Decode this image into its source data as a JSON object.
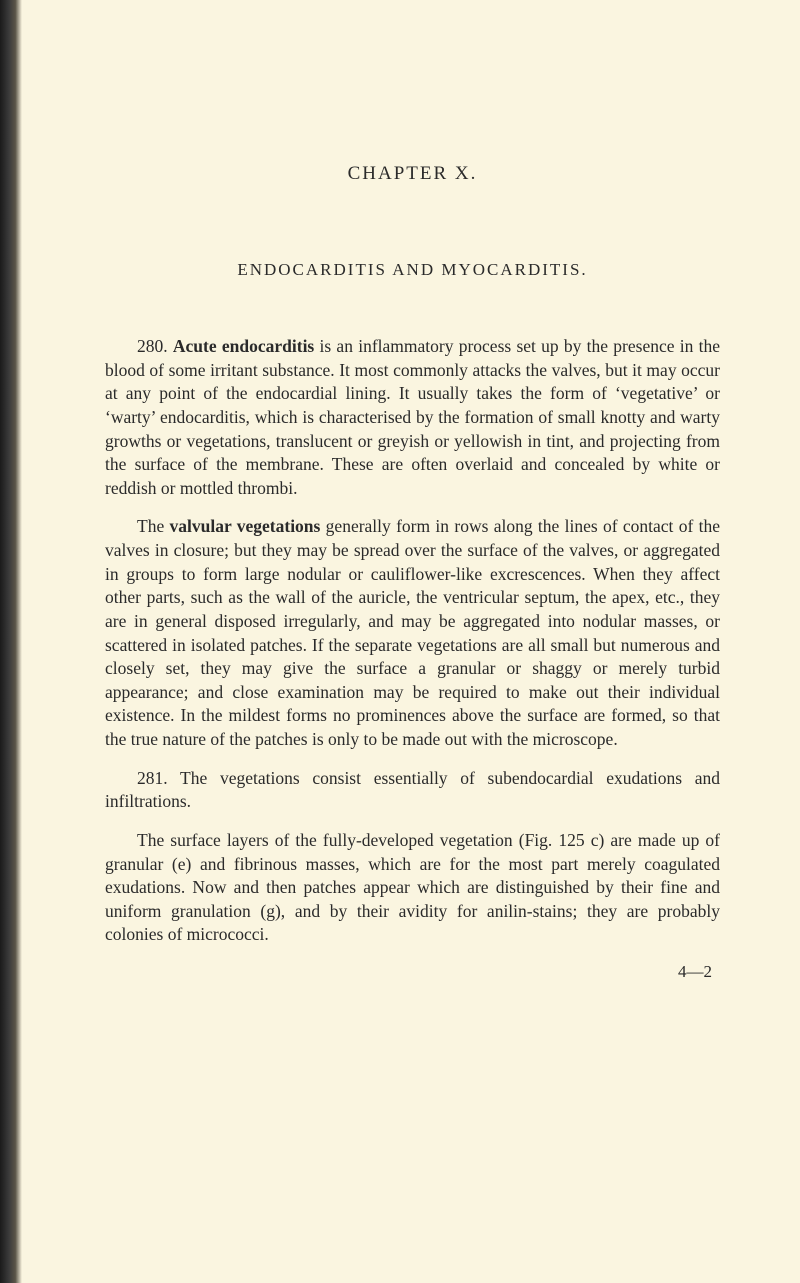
{
  "document": {
    "chapterHeading": "CHAPTER X.",
    "sectionHeading": "ENDOCARDITIS AND MYOCARDITIS.",
    "para1_num": "280. ",
    "para1_bold1": "Acute endocarditis",
    "para1_text1": " is an inflammatory process set up by the presence in the blood of some irritant substance. It most commonly attacks the valves, but it may occur at any point of the endocardial lining. It usually takes the form of ‘vegetative’ or ‘warty’ endocarditis, which is characterised by the formation of small knotty and warty growths or vegetations, translucent or greyish or yellowish in tint, and projecting from the surface of the membrane. These are often overlaid and concealed by white or reddish or mottled thrombi.",
    "para2_text1": "The ",
    "para2_bold1": "valvular vegetations",
    "para2_text2": " generally form in rows along the lines of contact of the valves in closure; but they may be spread over the surface of the valves, or aggregated in groups to form large nodular or cauliflower-like excrescences. When they affect other parts, such as the wall of the auricle, the ventricular septum, the apex, etc., they are in general disposed irregularly, and may be aggregated into nodular masses, or scattered in isolated patches. If the separate vegetations are all small but numerous and closely set, they may give the surface a granular or shaggy or merely turbid appearance; and close examination may be required to make out their individual existence. In the mildest forms no prominences above the surface are formed, so that the true nature of the patches is only to be made out with the microscope.",
    "para3_num": "281. ",
    "para3_text1": "The vegetations consist essentially of subendocardial exudations and infiltrations.",
    "para4_text1": "The surface layers of the fully-developed vegetation (Fig. 125 c) are made up of granular (e) and fibrinous masses, which are for the most part merely coagulated exudations. Now and then patches appear which are distinguished by their fine and uniform granulation (g), and by their avidity for anilin-stains; they are probably colonies of micrococci.",
    "footerMarker": "4—2"
  },
  "styling": {
    "backgroundColor": "#faf5e0",
    "textColor": "#2a2a2a",
    "fontFamily": "Times New Roman",
    "bodyFontSize": 17.5,
    "headingFontSize": 19,
    "sectionHeadingFontSize": 17,
    "lineHeight": 1.35,
    "leftEdgeGradient": [
      "#1a1a1a",
      "#3a3a3a",
      "#5a5548",
      "#faf5e0"
    ],
    "pageWidth": 800,
    "pageHeight": 1283,
    "textAlign": "justify",
    "textIndent": 32
  }
}
